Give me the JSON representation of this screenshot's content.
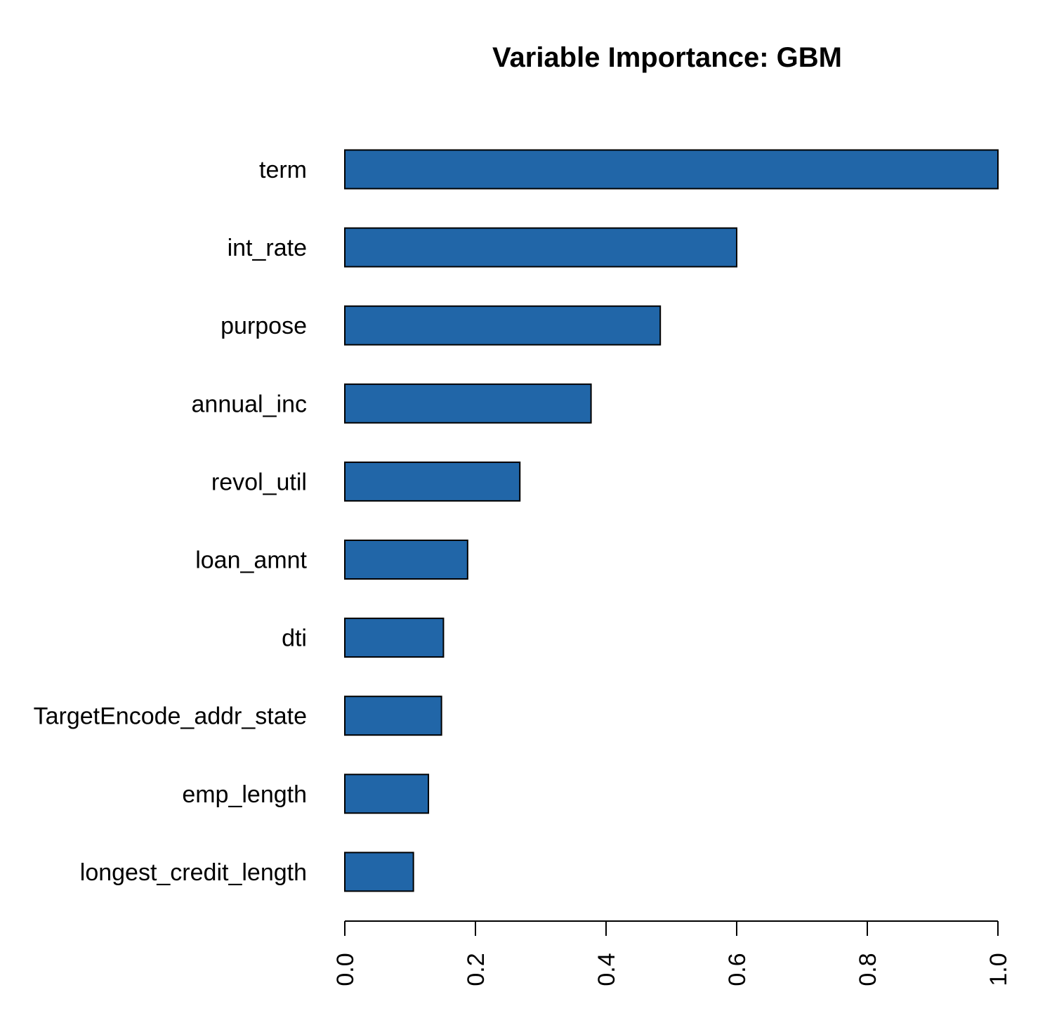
{
  "chart_data": {
    "type": "bar",
    "orientation": "horizontal",
    "title": "Variable Importance: GBM",
    "categories": [
      "term",
      "int_rate",
      "purpose",
      "annual_inc",
      "revol_util",
      "loan_amnt",
      "dti",
      "TargetEncode_addr_state",
      "emp_length",
      "longest_credit_length"
    ],
    "values": [
      1.0,
      0.6,
      0.483,
      0.377,
      0.268,
      0.188,
      0.151,
      0.148,
      0.128,
      0.105
    ],
    "color": "#2166a8",
    "xlim": [
      0,
      1
    ],
    "xticks": [
      {
        "value": 0,
        "label": "0.0"
      },
      0.2,
      0.4,
      0.6,
      0.8,
      {
        "value": 1,
        "label": "1.0"
      }
    ]
  }
}
